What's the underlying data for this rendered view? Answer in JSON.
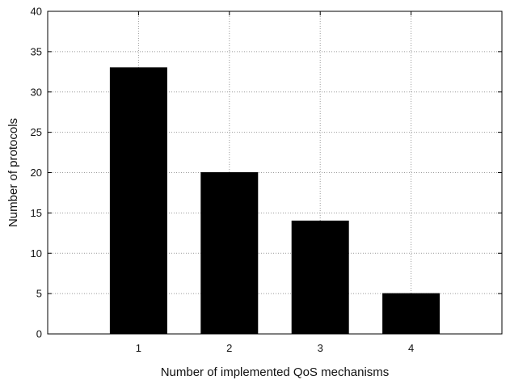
{
  "chart_data": {
    "type": "bar",
    "categories": [
      "1",
      "2",
      "3",
      "4"
    ],
    "values": [
      33,
      20,
      14,
      5
    ],
    "xlabel": "Number of implemented QoS mechanisms",
    "ylabel": "Number of protocols",
    "ylim": [
      0,
      40
    ],
    "yticks": [
      0,
      5,
      10,
      15,
      20,
      25,
      30,
      35,
      40
    ],
    "grid": true,
    "grid_style": "dotted",
    "legend": "none",
    "colors": {
      "bar": "#000000",
      "grid": "#9a9a9a",
      "axes": "#000000",
      "background": "#ffffff"
    }
  }
}
